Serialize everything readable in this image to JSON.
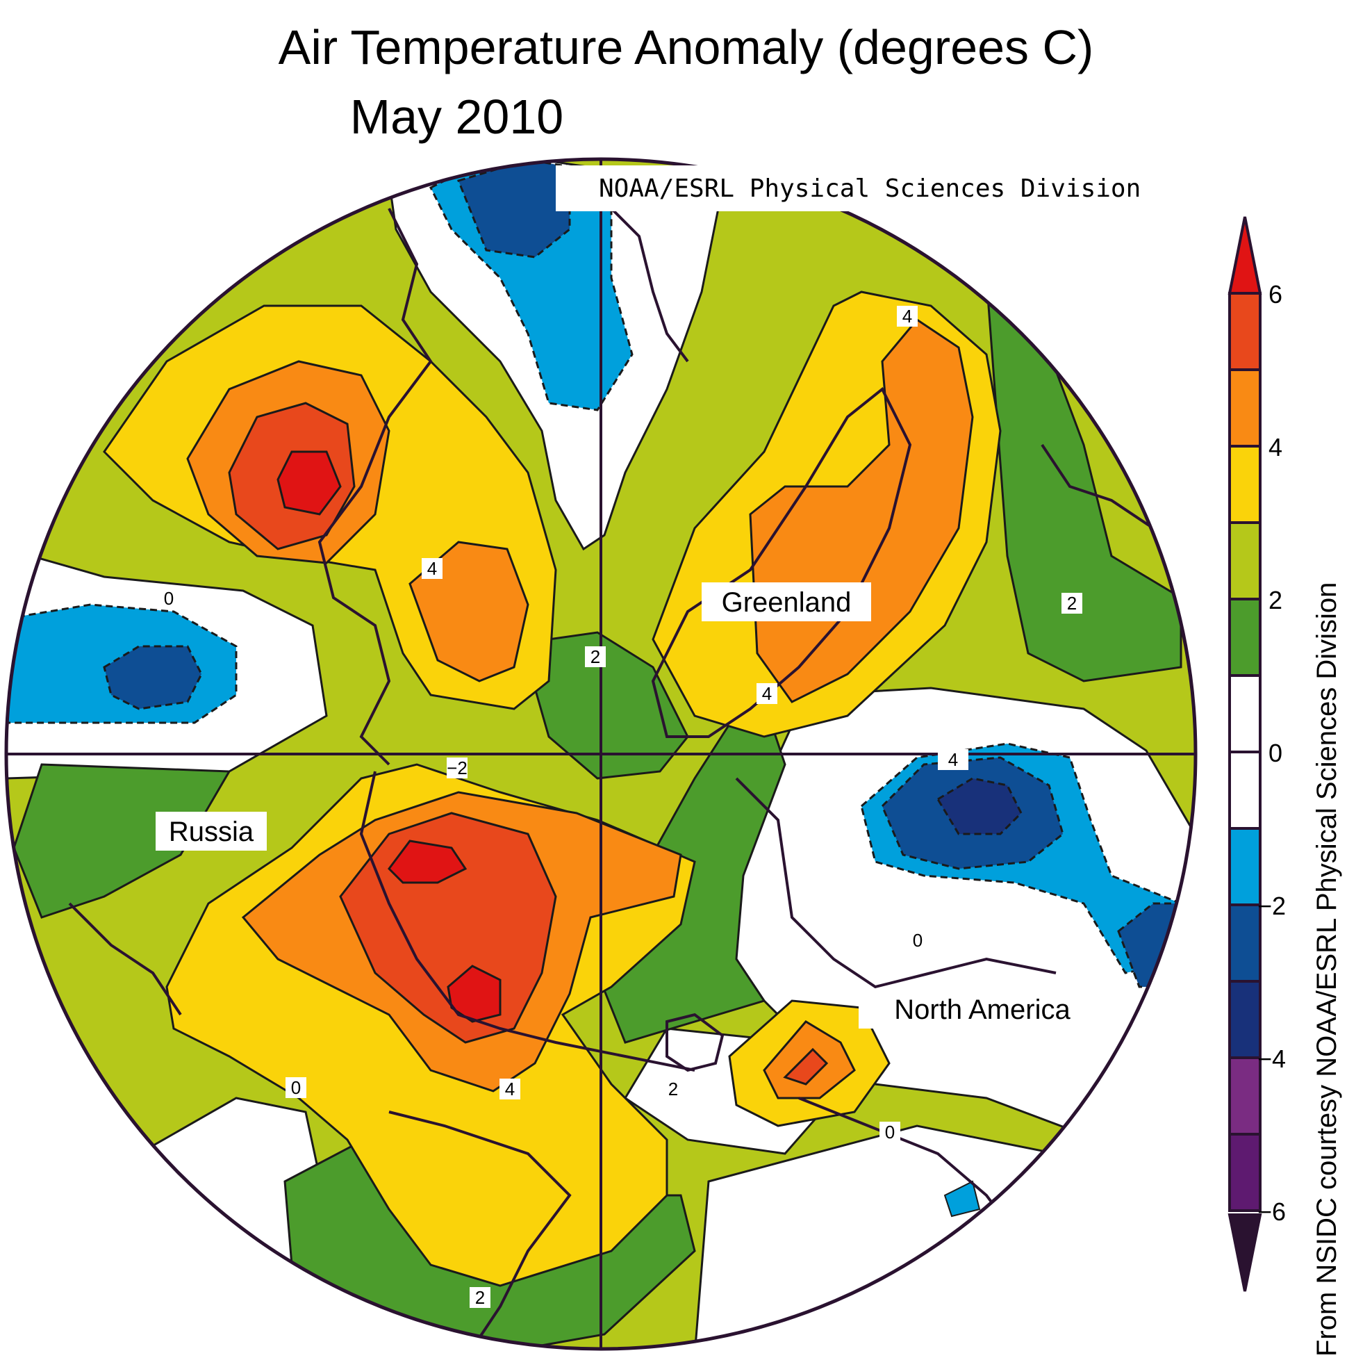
{
  "title": "Air Temperature Anomaly (degrees C)",
  "subtitle": "May 2010",
  "source_label": "NOAA/ESRL Physical Sciences Division",
  "credit": "From NSIDC courtesy NOAA/ESRL Physical Sciences Division",
  "region_labels": {
    "greenland": "Greenland",
    "russia": "Russia",
    "north_america": "North America"
  },
  "contour_labels": [
    "0",
    "4",
    "2",
    "4",
    "2",
    "4",
    "−2",
    "4",
    "0",
    "0",
    "4",
    "2",
    "2",
    "0"
  ],
  "colorbar": {
    "ticks": [
      "6",
      "4",
      "2",
      "0",
      "−2",
      "−4",
      "−6"
    ],
    "bands": [
      {
        "range": "5 to 6",
        "color": "#e8481c"
      },
      {
        "range": "4 to 5",
        "color": "#f98a14"
      },
      {
        "range": "3 to 4",
        "color": "#fad30a"
      },
      {
        "range": "2 to 3",
        "color": "#b5c81a"
      },
      {
        "range": "1 to 2",
        "color": "#4c9c2c"
      },
      {
        "range": "0 to 1",
        "color": "#ffffff"
      },
      {
        "range": "-1 to 0",
        "color": "#ffffff"
      },
      {
        "range": "-2 to -1",
        "color": "#00a0dc"
      },
      {
        "range": "-3 to -2",
        "color": "#0e4e94"
      },
      {
        "range": "-4 to -3",
        "color": "#18317a"
      },
      {
        "range": "-5 to -4",
        "color": "#7a2c82"
      },
      {
        "range": "-6 to -5",
        "color": "#5e1a70"
      }
    ],
    "over_color": "#e01414",
    "under_color": "#2a1230"
  }
}
